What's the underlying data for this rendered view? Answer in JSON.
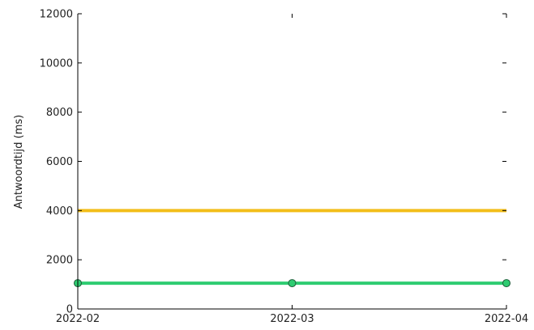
{
  "chart_data": {
    "type": "line",
    "ylabel": "Antwoordtijd (ms)",
    "xlabel": "",
    "title": "",
    "x": [
      "2022-02",
      "2022-03",
      "2022-04"
    ],
    "ylim": [
      0,
      12000
    ],
    "yticks": [
      0,
      2000,
      4000,
      6000,
      8000,
      10000,
      12000
    ],
    "grid": false,
    "series": [
      {
        "values": [
          4000,
          4000,
          4000
        ],
        "color": "#f2be1a",
        "markers": false
      },
      {
        "values": [
          1050,
          1050,
          1050
        ],
        "color": "#2ecc71",
        "markers": true
      }
    ]
  }
}
